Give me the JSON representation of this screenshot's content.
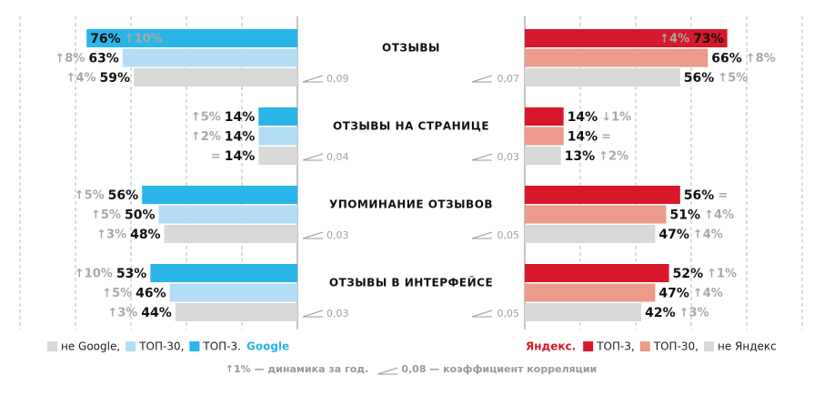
{
  "chart_data": {
    "type": "butterfly-bar",
    "categories": [
      "ОТЗЫВЫ",
      "ОТЗЫВЫ НА СТРАНИЦЕ",
      "УПОМИНАНИЕ ОТЗЫВОВ",
      "ОТЗЫВЫ В ИНТЕРФЕЙСЕ"
    ],
    "xlim": [
      0,
      100
    ],
    "xticks": [
      0,
      20,
      40,
      60,
      80,
      100
    ],
    "grid": true,
    "panels": [
      {
        "side": "left",
        "brand": "Google",
        "series": [
          {
            "name": "ТОП-3.",
            "color": "#29b5e8",
            "values": [
              76,
              14,
              56,
              53
            ],
            "value_labels": [
              "76%",
              "14%",
              "56%",
              "53%"
            ],
            "changes": [
              10,
              5,
              5,
              10
            ],
            "change_labels": [
              "↑10%",
              "↑5%",
              "↑5%",
              "↑10%"
            ]
          },
          {
            "name": "ТОП-30,",
            "color": "#b3ddf5",
            "values": [
              63,
              14,
              50,
              46
            ],
            "value_labels": [
              "63%",
              "14%",
              "50%",
              "46%"
            ],
            "changes": [
              8,
              2,
              5,
              5
            ],
            "change_labels": [
              "↑8%",
              "↑2%",
              "↑5%",
              "↑5%"
            ]
          },
          {
            "name": "не Google,",
            "color": "#d9d9d9",
            "values": [
              59,
              14,
              48,
              44
            ],
            "value_labels": [
              "59%",
              "14%",
              "48%",
              "44%"
            ],
            "changes": [
              4,
              0,
              3,
              3
            ],
            "change_labels": [
              "↑4%",
              "=",
              "↑3%",
              "↑3%"
            ]
          }
        ],
        "correlations": [
          0.09,
          0.04,
          0.03,
          0.03
        ],
        "correlation_labels": [
          "0,09",
          "0,04",
          "0,03",
          "0,03"
        ]
      },
      {
        "side": "right",
        "brand": "Яндекс.",
        "series": [
          {
            "name": "ТОП-3,",
            "color": "#d7182a",
            "values": [
              73,
              14,
              56,
              52
            ],
            "value_labels": [
              "73%",
              "14%",
              "56%",
              "52%"
            ],
            "changes": [
              4,
              -1,
              0,
              1
            ],
            "change_labels": [
              "↑4%",
              "↓1%",
              "=",
              "↑1%"
            ]
          },
          {
            "name": "ТОП-30,",
            "color": "#ec9a89",
            "values": [
              66,
              14,
              51,
              47
            ],
            "value_labels": [
              "66%",
              "14%",
              "51%",
              "47%"
            ],
            "changes": [
              8,
              0,
              4,
              4
            ],
            "change_labels": [
              "↑8%",
              "=",
              "↑4%",
              "↑4%"
            ]
          },
          {
            "name": "не Яндекс",
            "color": "#d9d9d9",
            "values": [
              56,
              13,
              47,
              42
            ],
            "value_labels": [
              "56%",
              "13%",
              "47%",
              "42%"
            ],
            "changes": [
              5,
              2,
              4,
              3
            ],
            "change_labels": [
              "↑5%",
              "↑2%",
              "↑4%",
              "↑3%"
            ]
          }
        ],
        "correlations": [
          0.07,
          0.03,
          0.05,
          0.05
        ],
        "correlation_labels": [
          "0,07",
          "0,03",
          "0,05",
          "0,05"
        ]
      }
    ],
    "note_change": "↑1% — динамика за год.",
    "note_correlation": "0,08 — коэффициент корреляции"
  }
}
